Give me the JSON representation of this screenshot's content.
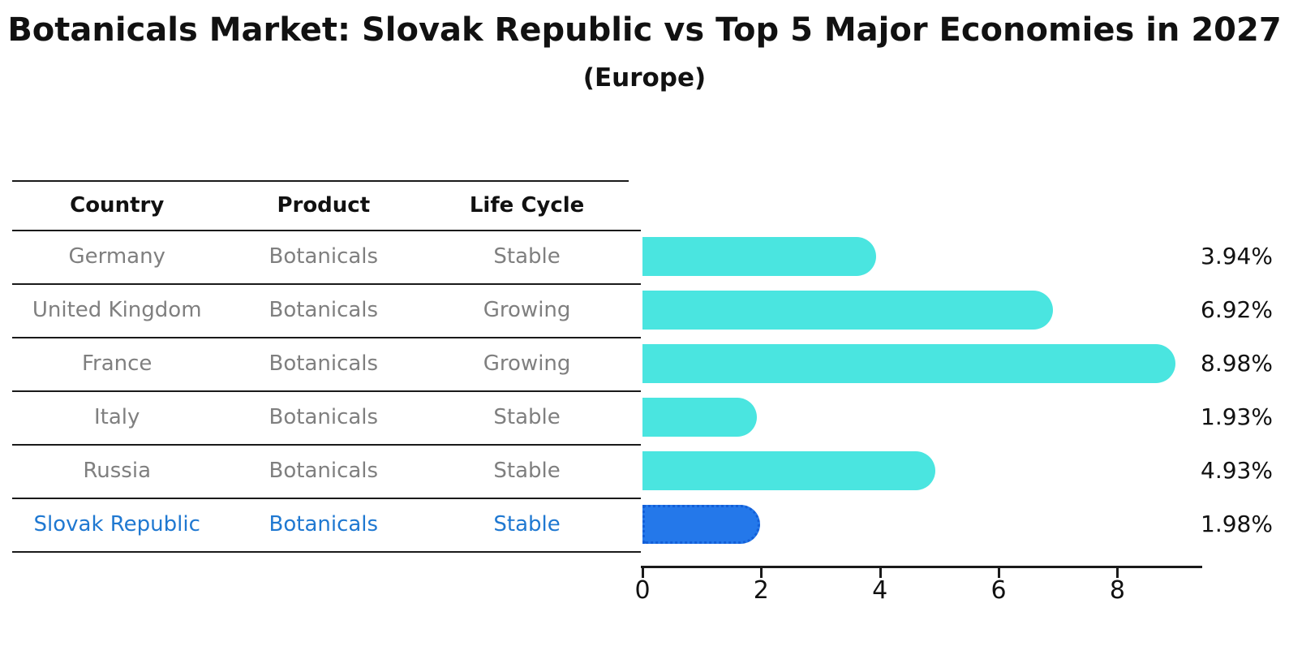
{
  "title": "Botanicals Market: Slovak Republic vs Top 5 Major Economies in 2027",
  "subtitle": "(Europe)",
  "colors": {
    "bar": "#4ae5e0",
    "highlight_bar": "#2478ea",
    "highlight_bar_border": "#135fd8",
    "highlight_text": "#1f78d1",
    "table_text": "#7f7f7f",
    "axis": "#1a1a1a"
  },
  "table": {
    "headers": [
      "Country",
      "Product",
      "Life Cycle"
    ],
    "rows": [
      {
        "country": "Germany",
        "product": "Botanicals",
        "life_cycle": "Stable",
        "highlight": false
      },
      {
        "country": "United Kingdom",
        "product": "Botanicals",
        "life_cycle": "Growing",
        "highlight": false
      },
      {
        "country": "France",
        "product": "Botanicals",
        "life_cycle": "Growing",
        "highlight": false
      },
      {
        "country": "Italy",
        "product": "Botanicals",
        "life_cycle": "Stable",
        "highlight": false
      },
      {
        "country": "Russia",
        "product": "Botanicals",
        "life_cycle": "Stable",
        "highlight": false
      },
      {
        "country": "Slovak Republic",
        "product": "Botanicals",
        "life_cycle": "Stable",
        "highlight": true
      }
    ]
  },
  "chart_data": {
    "type": "bar",
    "orientation": "horizontal",
    "title": "Botanicals Market: Slovak Republic vs Top 5 Major Economies in 2027 (Europe)",
    "categories": [
      "Germany",
      "United Kingdom",
      "France",
      "Italy",
      "Russia",
      "Slovak Republic"
    ],
    "values": [
      3.94,
      6.92,
      8.98,
      1.93,
      4.93,
      1.98
    ],
    "value_labels": [
      "3.94%",
      "6.92%",
      "8.98%",
      "1.93%",
      "4.93%",
      "1.98%"
    ],
    "highlight_category": "Slovak Republic",
    "xlabel": "",
    "ylabel": "",
    "xlim": [
      0,
      9.43
    ],
    "xticks": [
      0,
      2,
      4,
      6,
      8
    ],
    "grid": false,
    "legend": false
  }
}
